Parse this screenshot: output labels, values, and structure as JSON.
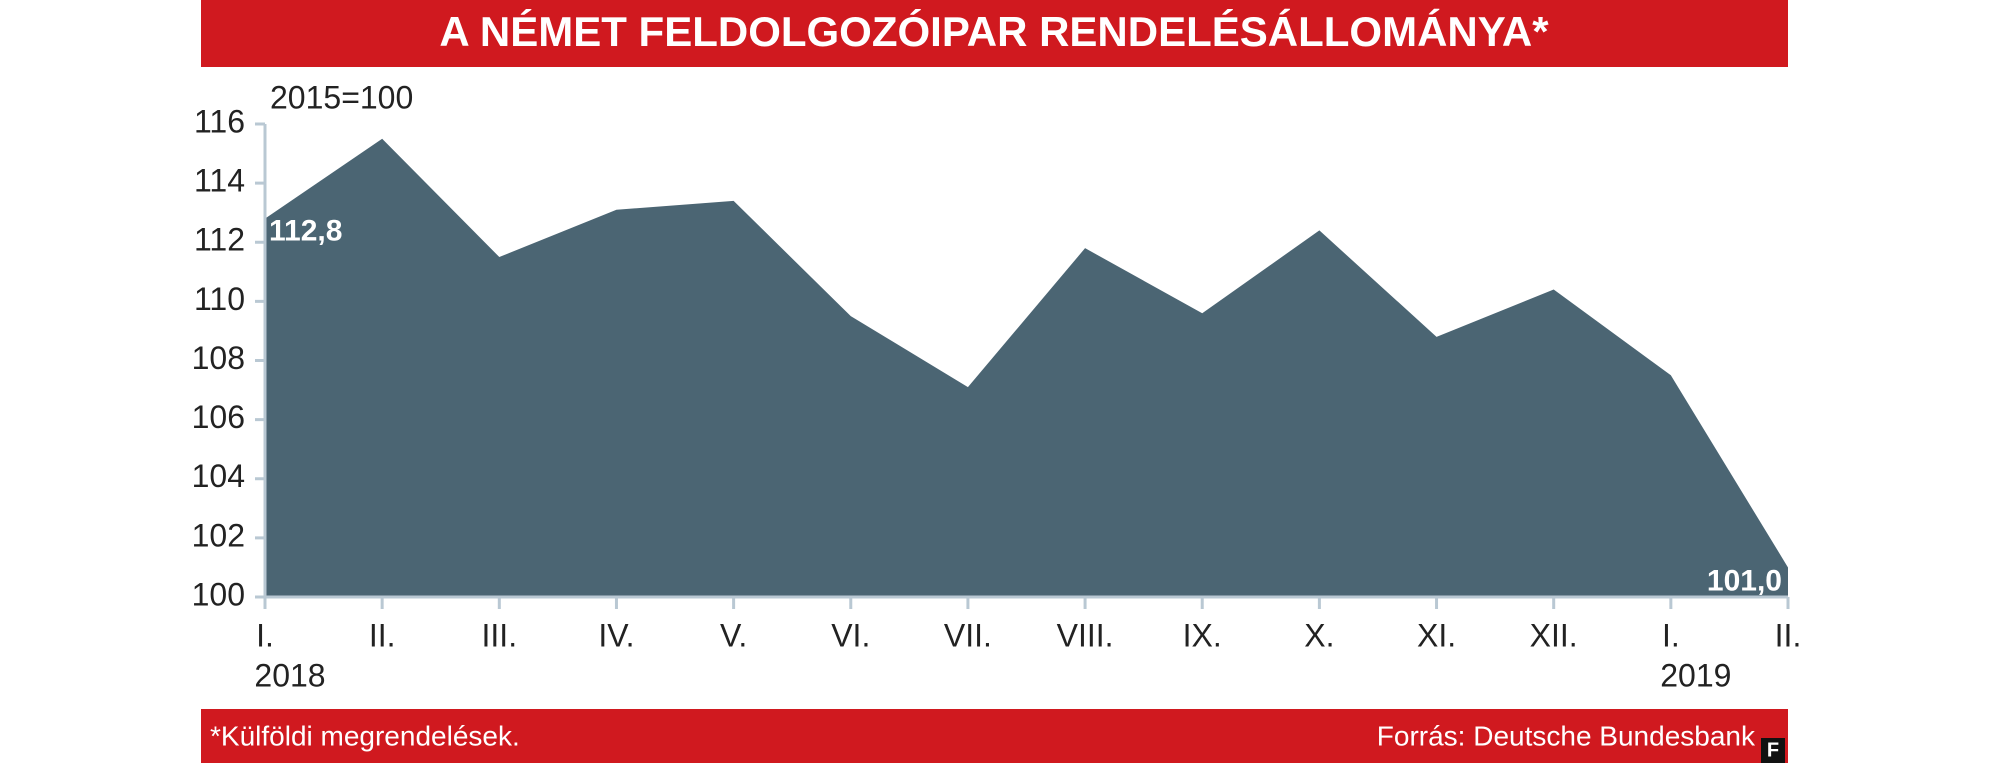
{
  "chart_data": {
    "type": "area",
    "title": "A NÉMET FELDOLGOZÓIPAR RENDELÉSÁLLOMÁNYA*",
    "y_label": "2015=100",
    "categories": [
      "I.",
      "II.",
      "III.",
      "IV.",
      "V.",
      "VI.",
      "VII.",
      "VIII.",
      "IX.",
      "X.",
      "XI.",
      "XII.",
      "I.",
      "II."
    ],
    "x_sublabels": [
      "2018",
      null,
      null,
      null,
      null,
      null,
      null,
      null,
      null,
      null,
      null,
      null,
      "2019",
      null
    ],
    "values": [
      112.8,
      115.5,
      111.5,
      113.1,
      113.4,
      109.5,
      107.1,
      111.8,
      109.6,
      112.4,
      108.8,
      110.4,
      107.5,
      101.0
    ],
    "value_labels": [
      "112,8",
      null,
      null,
      null,
      null,
      null,
      null,
      null,
      null,
      null,
      null,
      null,
      null,
      "101,0"
    ],
    "color": "#4b6573",
    "ylim": [
      100,
      116
    ],
    "yticks": [
      100,
      102,
      104,
      106,
      108,
      110,
      112,
      114,
      116
    ],
    "footnote": "*Külföldi megrendelések.",
    "source": "Forrás: Deutsche Bundesbank",
    "logo": "F"
  }
}
